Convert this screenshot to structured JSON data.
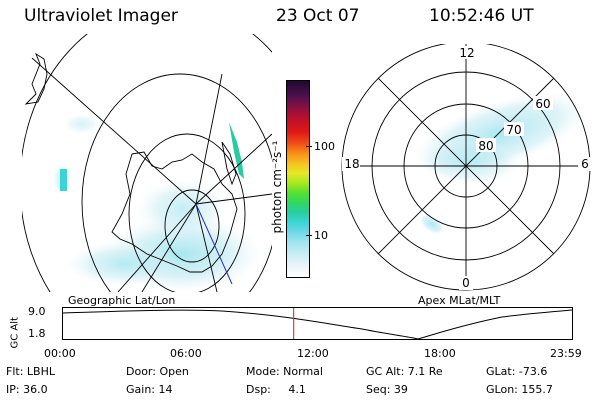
{
  "header": {
    "instrument": "Ultraviolet Imager",
    "date": "23 Oct 07",
    "time": "10:52:46 UT"
  },
  "left_map": {
    "label": "Geographic Lat/Lon"
  },
  "right_map": {
    "label": "Apex MLat/MLT",
    "mlt_labels": {
      "top": "12",
      "left": "18",
      "right": "6",
      "bottom": "0"
    },
    "mlat_labels": [
      "60",
      "70",
      "80"
    ]
  },
  "colorbar": {
    "unit_label": "photon cm⁻²s⁻¹",
    "ticks": [
      "100",
      "10"
    ],
    "scale": "log",
    "colors": [
      "#ffffff",
      "#e8f4f8",
      "#c8ecf4",
      "#9ee4ee",
      "#6ed8e8",
      "#3ad4d4",
      "#28cca0",
      "#30d860",
      "#58e030",
      "#a8e820",
      "#e8e828",
      "#f8c020",
      "#f89018",
      "#f05018",
      "#e01818",
      "#c01028",
      "#901040",
      "#501050",
      "#200830"
    ]
  },
  "altitude_plot": {
    "y_title": "GC Alt",
    "y_ticks": [
      "9.0",
      "1.8"
    ],
    "x_ticks": [
      "00:00",
      "06:00",
      "12:00",
      "18:00",
      "23:59"
    ],
    "marker_time": "10:52:46",
    "marker_color": "#d02020"
  },
  "status": {
    "row1": [
      {
        "text": "Flt: LBHL"
      },
      {
        "text": "Door: Open"
      },
      {
        "text": "Mode: Normal"
      },
      {
        "text": "GC Alt: 7.1 Re"
      },
      {
        "text": "GLat: -73.6"
      }
    ],
    "row2": [
      {
        "text": "IP: 36.0"
      },
      {
        "text": "Gain: 14"
      },
      {
        "text": "Dsp:     4.1"
      },
      {
        "text": "Seq: 39"
      },
      {
        "text": "GLon: 155.7"
      }
    ]
  }
}
